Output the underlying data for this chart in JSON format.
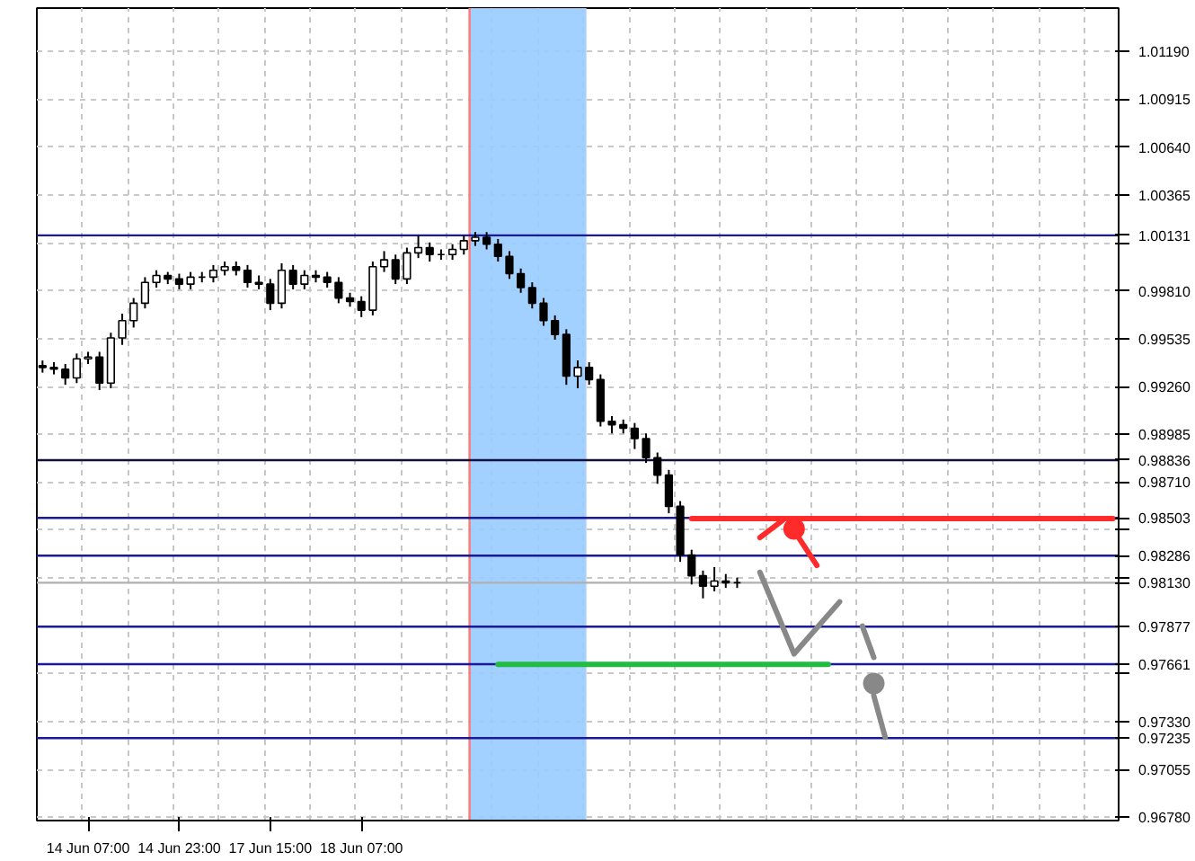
{
  "chart_data": {
    "type": "candlestick",
    "categories": [
      null,
      null,
      null,
      null,
      "14 Jun 07:00",
      null,
      null,
      null,
      null,
      null,
      null,
      null,
      "14 Jun 23:00",
      null,
      null,
      null,
      null,
      null,
      null,
      null,
      "17 Jun 15:00",
      null,
      null,
      null,
      null,
      null,
      null,
      null,
      "18 Jun 07:00",
      null,
      null,
      null,
      null,
      null,
      null,
      null,
      null,
      null,
      null,
      null,
      null,
      null,
      null,
      null,
      null,
      null,
      null,
      null,
      null,
      null,
      null,
      null,
      null,
      null,
      null,
      null,
      null,
      null,
      null,
      null,
      null,
      null,
      null,
      null,
      null,
      null,
      null,
      null,
      null,
      null,
      null,
      null,
      null,
      null,
      null,
      null,
      null,
      null,
      null,
      null,
      null,
      null,
      null,
      null,
      null,
      null,
      null,
      null,
      null,
      null,
      null,
      null,
      null,
      null,
      null
    ],
    "ohlc": [
      [
        0.9938,
        0.9941,
        0.9934,
        0.9937
      ],
      [
        0.9937,
        0.994,
        0.9933,
        0.9936
      ],
      [
        0.9936,
        0.9939,
        0.9927,
        0.9931
      ],
      [
        0.9931,
        0.9945,
        0.9928,
        0.9942
      ],
      [
        0.9942,
        0.9946,
        0.9939,
        0.9943
      ],
      [
        0.9943,
        0.9946,
        0.9924,
        0.9928
      ],
      [
        0.9928,
        0.9957,
        0.9925,
        0.9954
      ],
      [
        0.9954,
        0.9968,
        0.995,
        0.9964
      ],
      [
        0.9964,
        0.9977,
        0.996,
        0.9974
      ],
      [
        0.9974,
        0.9989,
        0.9971,
        0.9986
      ],
      [
        0.9986,
        0.9993,
        0.9983,
        0.999
      ],
      [
        0.999,
        0.9992,
        0.9985,
        0.9988
      ],
      [
        0.9988,
        0.9991,
        0.9982,
        0.9985
      ],
      [
        0.9985,
        0.9992,
        0.9982,
        0.9989
      ],
      [
        0.9989,
        0.9992,
        0.9986,
        0.9989
      ],
      [
        0.9989,
        0.9996,
        0.9986,
        0.9993
      ],
      [
        0.9993,
        0.9998,
        0.999,
        0.9995
      ],
      [
        0.9995,
        0.9998,
        0.999,
        0.9993
      ],
      [
        0.9993,
        0.9996,
        0.9983,
        0.9986
      ],
      [
        0.9986,
        0.999,
        0.9982,
        0.9985
      ],
      [
        0.9985,
        0.9988,
        0.997,
        0.9974
      ],
      [
        0.9974,
        0.9997,
        0.9971,
        0.9993
      ],
      [
        0.9993,
        0.9996,
        0.9982,
        0.9985
      ],
      [
        0.9985,
        0.9993,
        0.9982,
        0.999
      ],
      [
        0.999,
        0.9993,
        0.9986,
        0.9989
      ],
      [
        0.9989,
        0.9992,
        0.9983,
        0.9986
      ],
      [
        0.9986,
        0.9989,
        0.9974,
        0.9977
      ],
      [
        0.9977,
        0.998,
        0.9972,
        0.9975
      ],
      [
        0.9975,
        0.9978,
        0.9966,
        0.997
      ],
      [
        0.997,
        0.9998,
        0.9967,
        0.9995
      ],
      [
        0.9995,
        1.0004,
        0.9992,
        0.9999
      ],
      [
        0.9999,
        1.0002,
        0.9985,
        0.9988
      ],
      [
        0.9988,
        1.0006,
        0.9985,
        1.0003
      ],
      [
        1.0003,
        1.0013,
        1.0,
        1.0006
      ],
      [
        1.0006,
        1.0009,
        0.9998,
        1.0002
      ],
      [
        1.0002,
        1.0005,
        0.9999,
        1.0002
      ],
      [
        1.0002,
        1.0008,
        0.9999,
        1.0005
      ],
      [
        1.0005,
        1.0013,
        1.0002,
        1.001
      ],
      [
        1.001,
        1.0015,
        1.0007,
        1.0012
      ],
      [
        1.0012,
        1.0015,
        1.0005,
        1.0008
      ],
      [
        1.0008,
        1.0011,
        0.9998,
        1.0001
      ],
      [
        1.0001,
        1.0004,
        0.9988,
        0.9991
      ],
      [
        0.9991,
        0.9994,
        0.998,
        0.9983
      ],
      [
        0.9983,
        0.9986,
        0.9971,
        0.9974
      ],
      [
        0.9974,
        0.9977,
        0.9961,
        0.9964
      ],
      [
        0.9964,
        0.9967,
        0.9953,
        0.9956
      ],
      [
        0.9956,
        0.9959,
        0.9927,
        0.9932
      ],
      [
        0.9932,
        0.9941,
        0.9925,
        0.9937
      ],
      [
        0.9937,
        0.994,
        0.9927,
        0.993
      ],
      [
        0.993,
        0.9933,
        0.9903,
        0.9906
      ],
      [
        0.9906,
        0.9909,
        0.9899,
        0.9904
      ],
      [
        0.9904,
        0.9907,
        0.9899,
        0.9902
      ],
      [
        0.9902,
        0.9905,
        0.989,
        0.9896
      ],
      [
        0.9896,
        0.9899,
        0.9882,
        0.9885
      ],
      [
        0.9885,
        0.9888,
        0.987,
        0.9875
      ],
      [
        0.9875,
        0.9878,
        0.9853,
        0.9857
      ],
      [
        0.9857,
        0.986,
        0.9825,
        0.9829
      ],
      [
        0.9829,
        0.9832,
        0.9812,
        0.9817
      ],
      [
        0.9817,
        0.982,
        0.9804,
        0.9811
      ],
      [
        0.9811,
        0.9822,
        0.9808,
        0.9814
      ],
      [
        0.9814,
        0.9818,
        0.981,
        0.9813
      ],
      [
        0.9813,
        0.9816,
        0.981,
        0.9813
      ],
      null,
      null,
      null,
      null,
      null,
      null,
      null,
      null,
      null,
      null,
      null,
      null,
      null,
      null,
      null,
      null,
      null,
      null,
      null,
      null,
      null,
      null,
      null,
      null,
      null,
      null,
      null,
      null,
      null,
      null,
      null,
      null,
      null
    ],
    "series": [
      {
        "type": "line",
        "color": "#ff2a2a",
        "values": [
          null,
          null,
          null,
          null,
          null,
          null,
          null,
          null,
          null,
          null,
          null,
          null,
          null,
          null,
          null,
          null,
          null,
          null,
          null,
          null,
          null,
          null,
          null,
          null,
          null,
          null,
          null,
          null,
          null,
          null,
          null,
          null,
          null,
          null,
          null,
          null,
          null,
          null,
          null,
          null,
          null,
          null,
          null,
          null,
          null,
          null,
          null,
          null,
          null,
          null,
          null,
          null,
          null,
          null,
          null,
          null,
          null,
          0.985,
          0.985,
          0.985,
          0.985,
          0.985,
          0.985,
          0.985,
          0.985,
          0.985,
          0.985,
          0.985,
          0.985,
          0.985,
          0.985,
          0.985,
          0.985,
          0.985,
          0.985,
          0.985,
          0.985,
          0.985,
          0.985,
          0.985,
          0.985,
          0.985,
          0.985,
          0.985,
          0.985,
          0.985,
          0.985,
          0.985,
          0.985,
          0.985,
          0.985,
          0.985,
          0.985,
          0.985,
          0.985
        ]
      },
      {
        "type": "line",
        "color": "#22bb44",
        "values": [
          null,
          null,
          null,
          null,
          null,
          null,
          null,
          null,
          null,
          null,
          null,
          null,
          null,
          null,
          null,
          null,
          null,
          null,
          null,
          null,
          null,
          null,
          null,
          null,
          null,
          null,
          null,
          null,
          null,
          null,
          null,
          null,
          null,
          null,
          null,
          null,
          null,
          null,
          null,
          null,
          0.9766,
          0.9766,
          0.9766,
          0.9766,
          0.9766,
          0.9766,
          0.9766,
          0.9766,
          0.9766,
          0.9766,
          0.9766,
          0.9766,
          0.9766,
          0.9766,
          0.9766,
          0.9766,
          0.9766,
          0.9766,
          0.9766,
          0.9766,
          0.9766,
          0.9766,
          0.9766,
          0.9766,
          0.9766,
          0.9766,
          0.9766,
          0.9766,
          0.9766,
          0.9766,
          null,
          null,
          null,
          null,
          null,
          null,
          null,
          null,
          null,
          null,
          null,
          null,
          null,
          null,
          null,
          null,
          null,
          null,
          null,
          null,
          null,
          null,
          null,
          null,
          null
        ]
      },
      {
        "type": "line",
        "color": "#888888",
        "values": [
          null,
          null,
          null,
          null,
          null,
          null,
          null,
          null,
          null,
          null,
          null,
          null,
          null,
          null,
          null,
          null,
          null,
          null,
          null,
          null,
          null,
          null,
          null,
          null,
          null,
          null,
          null,
          null,
          null,
          null,
          null,
          null,
          null,
          null,
          null,
          null,
          null,
          null,
          null,
          null,
          null,
          null,
          null,
          null,
          null,
          null,
          null,
          null,
          null,
          null,
          null,
          null,
          null,
          null,
          null,
          null,
          null,
          null,
          null,
          null,
          null,
          null,
          null,
          0.9819,
          null,
          null,
          0.9772,
          null,
          null,
          null,
          0.9802,
          null,
          null,
          null,
          null,
          null,
          null,
          null,
          null,
          null,
          null,
          null,
          null,
          null,
          null,
          null,
          null,
          null,
          null,
          null,
          null,
          null,
          null,
          null,
          null
        ]
      },
      {
        "type": "line",
        "color": "#888888",
        "values": [
          null,
          null,
          null,
          null,
          null,
          null,
          null,
          null,
          null,
          null,
          null,
          null,
          null,
          null,
          null,
          null,
          null,
          null,
          null,
          null,
          null,
          null,
          null,
          null,
          null,
          null,
          null,
          null,
          null,
          null,
          null,
          null,
          null,
          null,
          null,
          null,
          null,
          null,
          null,
          null,
          null,
          null,
          null,
          null,
          null,
          null,
          null,
          null,
          null,
          null,
          null,
          null,
          null,
          null,
          null,
          null,
          null,
          null,
          null,
          null,
          null,
          null,
          null,
          null,
          null,
          null,
          null,
          null,
          null,
          null,
          null,
          null,
          0.9788,
          0.977,
          null,
          null,
          null,
          null,
          null,
          null,
          null,
          null,
          null,
          null,
          null,
          null,
          null,
          null,
          null,
          null,
          null,
          null,
          null,
          null,
          null
        ]
      },
      {
        "type": "scatter",
        "color": "#888888",
        "values": [
          null,
          null,
          null,
          null,
          null,
          null,
          null,
          null,
          null,
          null,
          null,
          null,
          null,
          null,
          null,
          null,
          null,
          null,
          null,
          null,
          null,
          null,
          null,
          null,
          null,
          null,
          null,
          null,
          null,
          null,
          null,
          null,
          null,
          null,
          null,
          null,
          null,
          null,
          null,
          null,
          null,
          null,
          null,
          null,
          null,
          null,
          null,
          null,
          null,
          null,
          null,
          null,
          null,
          null,
          null,
          null,
          null,
          null,
          null,
          null,
          null,
          null,
          null,
          null,
          null,
          null,
          null,
          null,
          null,
          null,
          null,
          null,
          null,
          0.9755,
          null,
          null,
          null,
          null,
          null,
          null,
          null,
          null,
          null,
          null,
          null,
          null,
          null,
          null,
          null,
          null,
          null,
          null,
          null,
          null,
          null
        ]
      },
      {
        "type": "line",
        "color": "#888888",
        "values": [
          null,
          null,
          null,
          null,
          null,
          null,
          null,
          null,
          null,
          null,
          null,
          null,
          null,
          null,
          null,
          null,
          null,
          null,
          null,
          null,
          null,
          null,
          null,
          null,
          null,
          null,
          null,
          null,
          null,
          null,
          null,
          null,
          null,
          null,
          null,
          null,
          null,
          null,
          null,
          null,
          null,
          null,
          null,
          null,
          null,
          null,
          null,
          null,
          null,
          null,
          null,
          null,
          null,
          null,
          null,
          null,
          null,
          null,
          null,
          null,
          null,
          null,
          null,
          null,
          null,
          null,
          null,
          null,
          null,
          null,
          null,
          null,
          null,
          0.9748,
          0.9724,
          null,
          null,
          null,
          null,
          null,
          null,
          null,
          null,
          null,
          null,
          null,
          null,
          null,
          null,
          null,
          null,
          null,
          null,
          null,
          null
        ]
      },
      {
        "type": "line",
        "color": "#ff2a2a",
        "values": [
          null,
          null,
          null,
          null,
          null,
          null,
          null,
          null,
          null,
          null,
          null,
          null,
          null,
          null,
          null,
          null,
          null,
          null,
          null,
          null,
          null,
          null,
          null,
          null,
          null,
          null,
          null,
          null,
          null,
          null,
          null,
          null,
          null,
          null,
          null,
          null,
          null,
          null,
          null,
          null,
          null,
          null,
          null,
          null,
          null,
          null,
          null,
          null,
          null,
          null,
          null,
          null,
          null,
          null,
          null,
          null,
          null,
          null,
          null,
          null,
          null,
          null,
          null,
          0.9839,
          null,
          0.9849,
          null,
          null,
          null,
          null,
          null,
          null,
          null,
          null,
          null,
          null,
          null,
          null,
          null,
          null,
          null,
          null,
          null,
          null,
          null,
          null,
          null,
          null,
          null,
          null,
          null,
          null,
          null,
          null,
          null
        ]
      },
      {
        "type": "scatter",
        "color": "#ff2a2a",
        "values": [
          null,
          null,
          null,
          null,
          null,
          null,
          null,
          null,
          null,
          null,
          null,
          null,
          null,
          null,
          null,
          null,
          null,
          null,
          null,
          null,
          null,
          null,
          null,
          null,
          null,
          null,
          null,
          null,
          null,
          null,
          null,
          null,
          null,
          null,
          null,
          null,
          null,
          null,
          null,
          null,
          null,
          null,
          null,
          null,
          null,
          null,
          null,
          null,
          null,
          null,
          null,
          null,
          null,
          null,
          null,
          null,
          null,
          null,
          null,
          null,
          null,
          null,
          null,
          null,
          null,
          null,
          0.9844,
          null,
          null,
          null,
          null,
          null,
          null,
          null,
          null,
          null,
          null,
          null,
          null,
          null,
          null,
          null,
          null,
          null,
          null,
          null,
          null,
          null,
          null,
          null,
          null,
          null,
          null,
          null,
          null
        ]
      },
      {
        "type": "line",
        "color": "#ff2a2a",
        "values": [
          null,
          null,
          null,
          null,
          null,
          null,
          null,
          null,
          null,
          null,
          null,
          null,
          null,
          null,
          null,
          null,
          null,
          null,
          null,
          null,
          null,
          null,
          null,
          null,
          null,
          null,
          null,
          null,
          null,
          null,
          null,
          null,
          null,
          null,
          null,
          null,
          null,
          null,
          null,
          null,
          null,
          null,
          null,
          null,
          null,
          null,
          null,
          null,
          null,
          null,
          null,
          null,
          null,
          null,
          null,
          null,
          null,
          null,
          null,
          null,
          null,
          null,
          null,
          null,
          null,
          null,
          0.9843,
          null,
          0.9823,
          null,
          null,
          null,
          null,
          null,
          null,
          null,
          null,
          null,
          null,
          null,
          null,
          null,
          null,
          null,
          null,
          null,
          null,
          null,
          null,
          null,
          null,
          null,
          null,
          null,
          null
        ]
      }
    ],
    "ylim": [
      0.9676,
      1.0144
    ],
    "yticks": [
      {
        "value": 1.0119,
        "label": "1.01190"
      },
      {
        "value": 1.00915,
        "label": "1.00915"
      },
      {
        "value": 1.0064,
        "label": "1.00640"
      },
      {
        "value": 1.00365,
        "label": "1.00365"
      },
      {
        "value": 1.00085,
        "label": null
      },
      {
        "value": 0.9981,
        "label": "0.99810"
      },
      {
        "value": 0.99535,
        "label": "0.99535"
      },
      {
        "value": 0.9926,
        "label": "0.99260"
      },
      {
        "value": 0.98985,
        "label": "0.98985"
      },
      {
        "value": 0.9871,
        "label": "0.98710"
      },
      {
        "value": 0.98435,
        "label": null
      },
      {
        "value": 0.9816,
        "label": null
      },
      {
        "value": 0.9788,
        "label": null
      },
      {
        "value": 0.97605,
        "label": null
      },
      {
        "value": 0.9733,
        "label": "0.97330"
      },
      {
        "value": 0.97055,
        "label": "0.97055"
      },
      {
        "value": 0.9678,
        "label": "0.96780"
      }
    ],
    "grid": true,
    "ref_lines": [
      {
        "axis": "y",
        "value": 1.00131,
        "label": "1.00131",
        "color": "#1a1a99"
      },
      {
        "axis": "y",
        "value": 0.98836,
        "label": "0.98836",
        "color": "#101040"
      },
      {
        "axis": "y",
        "value": 0.98503,
        "label": "0.98503",
        "color": "#1a1a99"
      },
      {
        "axis": "y",
        "value": 0.98286,
        "label": "0.98286",
        "color": "#1a1a99"
      },
      {
        "axis": "y",
        "value": 0.9813,
        "label": "0.98130",
        "color": "#b0b0b0"
      },
      {
        "axis": "y",
        "value": 0.97877,
        "label": "0.97877",
        "color": "#1a1a99"
      },
      {
        "axis": "y",
        "value": 0.97661,
        "label": "0.97661",
        "color": "#1a1a99"
      },
      {
        "axis": "y",
        "value": 0.97235,
        "label": "0.97235",
        "color": "#1a1a99"
      }
    ]
  }
}
